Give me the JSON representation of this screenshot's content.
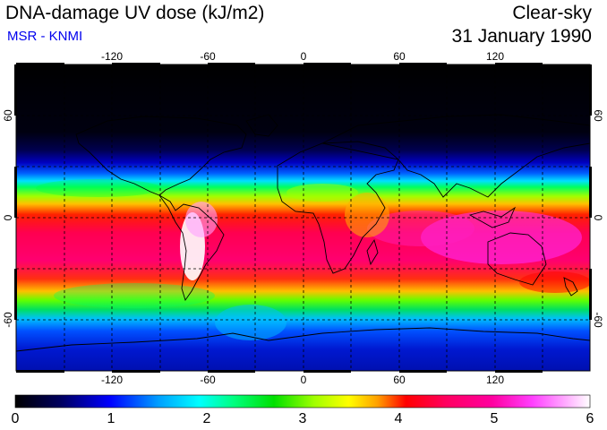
{
  "header": {
    "title": "DNA-damage UV dose (kJ/m2)",
    "subtitle": "MSR - KNMI",
    "condition": "Clear-sky",
    "date": "31 January 1990"
  },
  "map": {
    "projection": "cylindrical",
    "lon_range": [
      -180,
      180
    ],
    "lat_range": [
      -90,
      90
    ],
    "lon_ticks": [
      "-120",
      "-60",
      "0",
      "60",
      "120"
    ],
    "lat_ticks": [
      "60",
      "0",
      "-60"
    ],
    "grid_spacing_deg": 30
  },
  "colorbar": {
    "min": 0,
    "max": 6,
    "labels": [
      "0",
      "1",
      "2",
      "3",
      "4",
      "5",
      "6"
    ],
    "colors": [
      "#000000",
      "#000060",
      "#0000ff",
      "#00a0ff",
      "#00ffff",
      "#00ff80",
      "#00e000",
      "#a0ff00",
      "#ffff00",
      "#ffa000",
      "#ff0000",
      "#ff0060",
      "#ff00a0",
      "#ff40ff",
      "#ffb0ff",
      "#ffffff"
    ]
  }
}
